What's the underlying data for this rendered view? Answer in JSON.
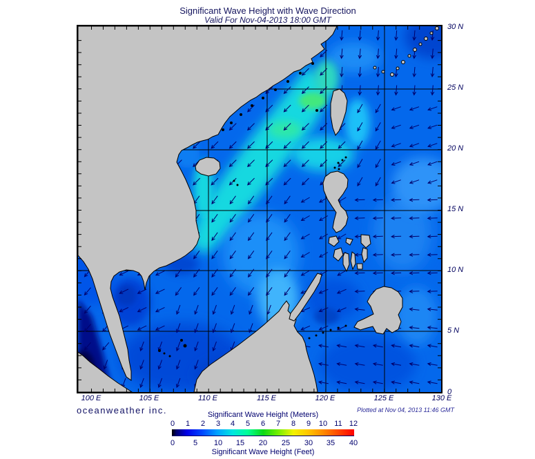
{
  "header": {
    "title": "Significant Wave Height with Wave Direction",
    "subtitle": "Valid For Nov-04-2013 18:00 GMT"
  },
  "map": {
    "lat_labels": [
      "30 N",
      "25 N",
      "20 N",
      "15 N",
      "10 N",
      "5 N",
      "0"
    ],
    "lon_labels": [
      "100 E",
      "105 E",
      "110 E",
      "115 E",
      "120 E",
      "125 E",
      "130 E"
    ]
  },
  "footer": {
    "credit": "oceanweather inc.",
    "plotted": "Plotted at Nov 04, 2013 11:46 GMT"
  },
  "legend": {
    "meters_title": "Significant Wave Height (Meters)",
    "meters_ticks": [
      "0",
      "1",
      "2",
      "3",
      "4",
      "5",
      "6",
      "7",
      "8",
      "9",
      "10",
      "11",
      "12"
    ],
    "feet_title": "Significant Wave Height (Feet)",
    "feet_ticks": [
      "0",
      "5",
      "10",
      "15",
      "20",
      "25",
      "30",
      "35",
      "40"
    ],
    "colorbar_stops": [
      {
        "m": 0,
        "color": "#000000"
      },
      {
        "m": 0.3,
        "color": "#000070"
      },
      {
        "m": 1,
        "color": "#0000e8"
      },
      {
        "m": 2,
        "color": "#0047ff"
      },
      {
        "m": 3,
        "color": "#00a2ff"
      },
      {
        "m": 4,
        "color": "#00e6e0"
      },
      {
        "m": 5,
        "color": "#00ff96"
      },
      {
        "m": 6,
        "color": "#0bd816"
      },
      {
        "m": 7,
        "color": "#74ee00"
      },
      {
        "m": 8,
        "color": "#f2f200"
      },
      {
        "m": 9,
        "color": "#ffc400"
      },
      {
        "m": 10,
        "color": "#ff8800"
      },
      {
        "m": 11,
        "color": "#ff4400"
      },
      {
        "m": 12,
        "color": "#ff0000"
      }
    ]
  },
  "colors": {
    "land": "#c4c4c4",
    "ocean_base": "#0468ec",
    "arrow": "#00006b",
    "text": "#000066"
  }
}
